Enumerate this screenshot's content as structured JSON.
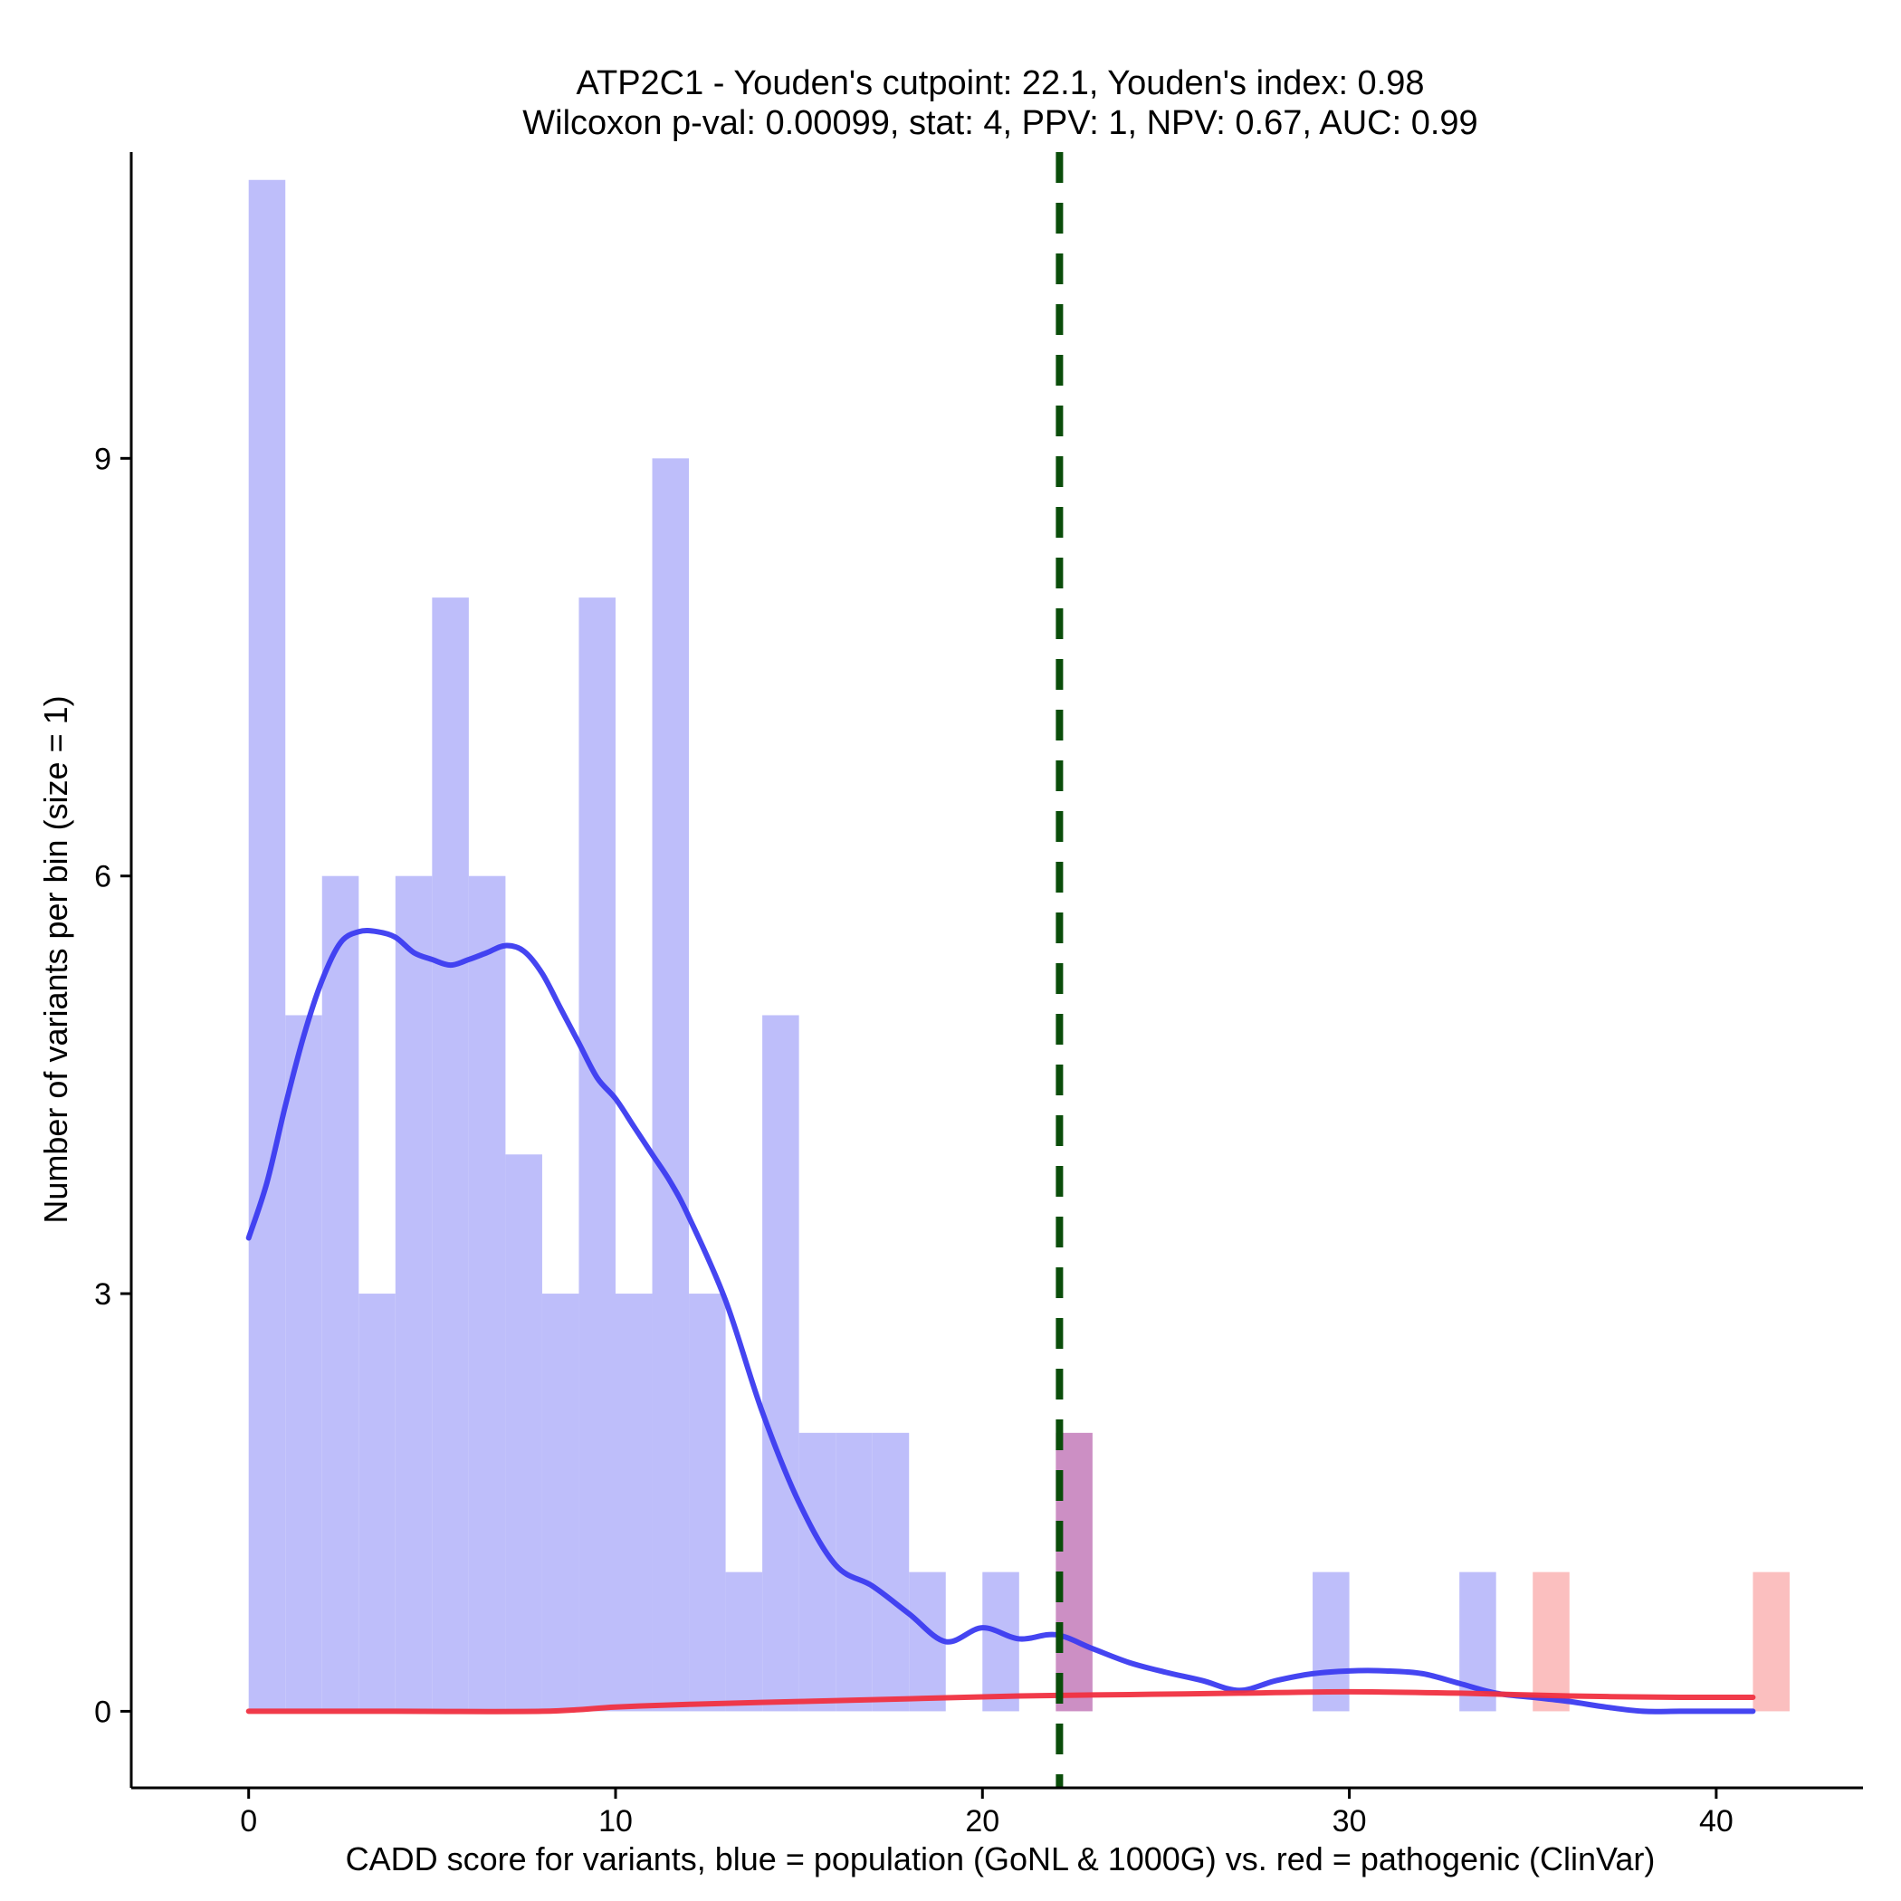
{
  "chart_data": {
    "type": "histogram",
    "title": "ATP2C1 - Youden's cutpoint: 22.1, Youden's index: 0.98",
    "subtitle": "Wilcoxon p-val: 0.00099, stat: 4, PPV: 1, NPV: 0.67, AUC: 0.99",
    "xlabel": "CADD score for variants, blue = population (GoNL & 1000G) vs. red = pathogenic (ClinVar)",
    "ylabel": "Number of variants per bin (size = 1)",
    "xlim": [
      -3.2,
      44.0
    ],
    "ylim": [
      -0.55,
      11.2
    ],
    "xticks": [
      0,
      10,
      20,
      30,
      40
    ],
    "xtick_labels": [
      "0",
      "10",
      "20",
      "30",
      "40"
    ],
    "yticks": [
      0,
      3,
      6,
      9
    ],
    "ytick_labels": [
      "0",
      "3",
      "6",
      "9"
    ],
    "bin_size": 1,
    "series": [
      {
        "name": "population (GoNL & 1000G)",
        "color": "#bebefa",
        "bins": [
          {
            "x0": 0,
            "count": 11
          },
          {
            "x0": 1,
            "count": 5
          },
          {
            "x0": 2,
            "count": 6
          },
          {
            "x0": 3,
            "count": 3
          },
          {
            "x0": 4,
            "count": 6
          },
          {
            "x0": 5,
            "count": 8
          },
          {
            "x0": 6,
            "count": 6
          },
          {
            "x0": 7,
            "count": 4
          },
          {
            "x0": 8,
            "count": 3
          },
          {
            "x0": 9,
            "count": 8
          },
          {
            "x0": 10,
            "count": 3
          },
          {
            "x0": 11,
            "count": 9
          },
          {
            "x0": 12,
            "count": 3
          },
          {
            "x0": 13,
            "count": 1
          },
          {
            "x0": 14,
            "count": 5
          },
          {
            "x0": 15,
            "count": 2
          },
          {
            "x0": 16,
            "count": 2
          },
          {
            "x0": 17,
            "count": 2
          },
          {
            "x0": 18,
            "count": 1
          },
          {
            "x0": 20,
            "count": 1
          },
          {
            "x0": 22,
            "count": 2
          },
          {
            "x0": 29,
            "count": 1
          },
          {
            "x0": 33,
            "count": 1
          }
        ]
      },
      {
        "name": "pathogenic (ClinVar)",
        "color": "#fbbfbf",
        "bins": [
          {
            "x0": 22,
            "count": 2
          },
          {
            "x0": 35,
            "count": 1
          },
          {
            "x0": 41,
            "count": 1
          }
        ]
      }
    ],
    "overlap_color": "#cc8fc4",
    "density_curves": [
      {
        "name": "population density",
        "color": "#3b3bf0",
        "x": [
          0,
          0.5,
          1,
          1.5,
          2,
          2.5,
          3,
          3.5,
          4,
          4.5,
          5,
          5.5,
          6,
          6.5,
          7,
          7.5,
          8,
          8.5,
          9,
          9.5,
          10,
          10.5,
          11,
          11.5,
          12,
          13,
          14,
          15,
          16,
          17,
          18,
          19,
          20,
          21,
          22,
          23,
          24,
          25,
          26,
          27,
          28,
          29,
          30,
          31,
          32,
          33,
          34,
          35,
          36,
          37,
          38,
          39,
          40,
          41
        ],
        "y": [
          3.4,
          3.8,
          4.35,
          4.85,
          5.25,
          5.52,
          5.6,
          5.6,
          5.56,
          5.45,
          5.4,
          5.36,
          5.4,
          5.45,
          5.5,
          5.46,
          5.3,
          5.05,
          4.8,
          4.55,
          4.4,
          4.2,
          4.0,
          3.8,
          3.55,
          2.95,
          2.15,
          1.5,
          1.05,
          0.9,
          0.7,
          0.5,
          0.6,
          0.52,
          0.55,
          0.45,
          0.35,
          0.28,
          0.22,
          0.15,
          0.22,
          0.27,
          0.29,
          0.29,
          0.27,
          0.2,
          0.13,
          0.1,
          0.07,
          0.03,
          0.0,
          0.0,
          0.0,
          0.0
        ]
      },
      {
        "name": "pathogenic density",
        "color": "#f03040",
        "x": [
          0,
          4,
          8,
          10,
          12,
          15,
          18,
          21,
          24,
          27,
          30,
          33,
          36,
          39,
          41
        ],
        "y": [
          0.0,
          0.0,
          0.0,
          0.03,
          0.05,
          0.07,
          0.09,
          0.11,
          0.12,
          0.13,
          0.14,
          0.13,
          0.11,
          0.1,
          0.1
        ]
      }
    ],
    "cutpoint": {
      "value": 22.1,
      "color": "#0a4d0a",
      "style": "dashed"
    }
  }
}
